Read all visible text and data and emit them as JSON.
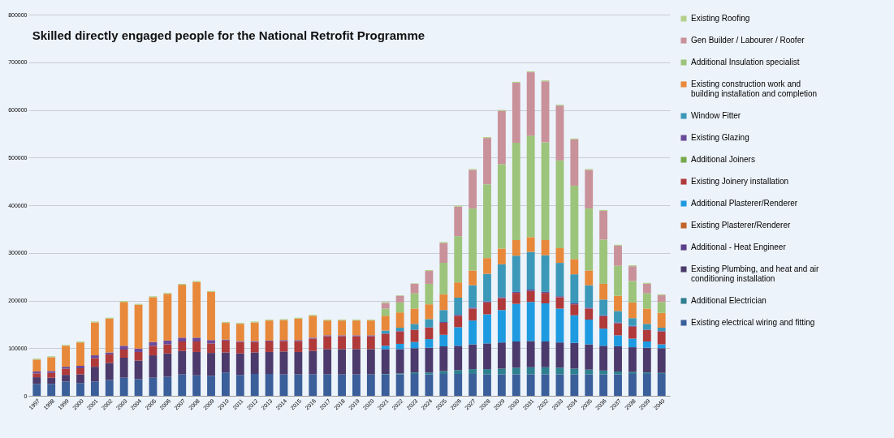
{
  "chart_data": {
    "type": "bar",
    "title": "Skilled directly engaged people for the National Retrofit Programme",
    "stacked": true,
    "grid": "y",
    "legend": "right",
    "categories": [
      "1997",
      "1998",
      "1999",
      "2000",
      "2001",
      "2002",
      "2003",
      "2004",
      "2005",
      "2006",
      "2007",
      "2008",
      "2009",
      "2010",
      "2011",
      "2012",
      "2013",
      "2014",
      "2015",
      "2016",
      "2017",
      "2018",
      "2019",
      "2020",
      "2021",
      "2022",
      "2023",
      "2024",
      "2025",
      "2026",
      "2027",
      "2028",
      "2029",
      "2030",
      "2031",
      "2032",
      "2033",
      "2034",
      "2035",
      "2036",
      "2037",
      "2038",
      "2039",
      "2040"
    ],
    "ylim": [
      0,
      800000
    ],
    "yticks": [
      0,
      100000,
      200000,
      300000,
      400000,
      500000,
      600000,
      700000,
      800000
    ],
    "series": [
      {
        "name": "Existing electrical wiring and fitting",
        "color": "#3a5f9a",
        "values": [
          25000,
          25000,
          30000,
          27000,
          30000,
          33000,
          38000,
          35000,
          38000,
          40000,
          45000,
          43000,
          42000,
          49000,
          44000,
          46000,
          46000,
          45000,
          45000,
          45000,
          45000,
          45000,
          45000,
          45000,
          45000,
          45000,
          46000,
          45000,
          46000,
          46000,
          46000,
          45000,
          45000,
          45000,
          45000,
          45000,
          45000,
          45000,
          45000,
          45000,
          45000,
          46000,
          46000,
          46000
        ]
      },
      {
        "name": "Additional Electrician",
        "color": "#2e7f8f",
        "values": [
          null,
          null,
          null,
          null,
          null,
          null,
          null,
          null,
          null,
          null,
          null,
          null,
          null,
          null,
          null,
          null,
          null,
          null,
          null,
          null,
          null,
          null,
          null,
          null,
          1000,
          2000,
          3000,
          4000,
          6000,
          8000,
          10000,
          11000,
          12000,
          14000,
          15000,
          15000,
          14000,
          12000,
          10000,
          8000,
          6000,
          4000,
          3000,
          2000
        ]
      },
      {
        "name": "Existing Plumbing, and heat and air conditioning installation",
        "color": "#4b3a6b",
        "values": [
          14000,
          13000,
          14000,
          18000,
          31000,
          36000,
          42000,
          39000,
          47000,
          49000,
          49000,
          49000,
          48000,
          42000,
          45000,
          45000,
          46000,
          48000,
          47000,
          49000,
          53000,
          53000,
          53000,
          53000,
          52000,
          51000,
          51000,
          52000,
          52000,
          51000,
          52000,
          54000,
          55000,
          55000,
          55000,
          54000,
          53000,
          54000,
          53000,
          52000,
          53000,
          52000,
          52000,
          52000
        ]
      },
      {
        "name": "Additional - Heat Engineer",
        "color": "#5a3f8c",
        "values": [
          null,
          null,
          null,
          null,
          null,
          null,
          null,
          null,
          null,
          null,
          null,
          null,
          null,
          null,
          null,
          null,
          null,
          null,
          null,
          null,
          null,
          null,
          null,
          null,
          null,
          null,
          null,
          null,
          null,
          null,
          null,
          null,
          null,
          null,
          null,
          null,
          null,
          null,
          null,
          null,
          null,
          null,
          null,
          null
        ]
      },
      {
        "name": "Existing Plasterer/Renderer",
        "color": "#c0622a",
        "values": [
          null,
          null,
          null,
          null,
          null,
          null,
          null,
          null,
          null,
          null,
          null,
          null,
          null,
          null,
          null,
          null,
          null,
          null,
          null,
          null,
          null,
          null,
          null,
          null,
          null,
          null,
          null,
          null,
          null,
          null,
          null,
          null,
          null,
          null,
          null,
          null,
          null,
          null,
          null,
          null,
          null,
          null,
          null,
          null
        ]
      },
      {
        "name": "Additional Plasterer/Renderer",
        "color": "#1e9be0",
        "values": [
          null,
          null,
          null,
          null,
          null,
          null,
          null,
          null,
          null,
          null,
          null,
          null,
          null,
          null,
          null,
          null,
          null,
          null,
          null,
          null,
          null,
          null,
          null,
          null,
          7000,
          11000,
          13000,
          18000,
          24000,
          39000,
          50000,
          61000,
          68000,
          79000,
          82000,
          80000,
          71000,
          58000,
          52000,
          36000,
          23000,
          18000,
          13000,
          8000
        ]
      },
      {
        "name": "Existing Joinery installation",
        "color": "#b03a3a",
        "values": [
          8000,
          10000,
          13000,
          13000,
          18000,
          18000,
          17000,
          18000,
          20000,
          19000,
          20000,
          22000,
          20000,
          25000,
          24000,
          22000,
          22000,
          22000,
          23000,
          26000,
          27000,
          27000,
          27000,
          27000,
          25000,
          26000,
          25000,
          24000,
          25000,
          24000,
          25000,
          25000,
          25000,
          23000,
          23000,
          22000,
          24000,
          23000,
          23000,
          26000,
          25000,
          25000,
          24000,
          27000
        ]
      },
      {
        "name": "Additional Joiners",
        "color": "#77a84a",
        "values": [
          null,
          null,
          null,
          null,
          null,
          null,
          null,
          null,
          null,
          null,
          null,
          null,
          null,
          null,
          null,
          null,
          null,
          null,
          null,
          null,
          null,
          null,
          null,
          null,
          null,
          null,
          null,
          null,
          null,
          null,
          null,
          null,
          null,
          null,
          null,
          null,
          null,
          null,
          null,
          null,
          null,
          null,
          null,
          null
        ]
      },
      {
        "name": "Existing Glazing",
        "color": "#6a4a9a",
        "values": [
          4000,
          4000,
          4000,
          5000,
          6000,
          4000,
          8000,
          7000,
          8000,
          8000,
          8000,
          8000,
          7000,
          2000,
          2000,
          2000,
          2000,
          2000,
          2000,
          2000,
          2000,
          2000,
          2000,
          2000,
          1000,
          1000,
          1000,
          1000,
          2000,
          2000,
          2000,
          2000,
          2000,
          2000,
          3000,
          2000,
          2000,
          2000,
          2000,
          2000,
          2000,
          2000,
          1000,
          1000
        ]
      },
      {
        "name": "Window Fitter",
        "color": "#3b98b8",
        "values": [
          null,
          null,
          null,
          null,
          null,
          null,
          null,
          null,
          null,
          null,
          null,
          null,
          null,
          null,
          null,
          null,
          null,
          null,
          null,
          null,
          null,
          null,
          null,
          null,
          6000,
          7000,
          12000,
          17000,
          25000,
          36000,
          47000,
          58000,
          69000,
          76000,
          79000,
          77000,
          70000,
          61000,
          47000,
          33000,
          24000,
          16000,
          12000,
          7000
        ]
      },
      {
        "name": "Existing construction work and building installation and completion",
        "color": "#e8883a",
        "values": [
          25000,
          29000,
          44000,
          49000,
          69000,
          71000,
          92000,
          92000,
          94000,
          98000,
          111000,
          117000,
          101000,
          35000,
          36000,
          39000,
          42000,
          42000,
          45000,
          46000,
          31000,
          31000,
          31000,
          31000,
          31000,
          32000,
          32000,
          31000,
          33000,
          32000,
          31000,
          33000,
          33000,
          33000,
          31000,
          32000,
          31000,
          32000,
          31000,
          33000,
          32000,
          33000,
          32000,
          31000
        ]
      },
      {
        "name": "Additional Insulation specialist",
        "color": "#9cc47a",
        "values": [
          null,
          null,
          null,
          null,
          null,
          null,
          null,
          null,
          null,
          null,
          null,
          null,
          null,
          null,
          null,
          null,
          null,
          null,
          null,
          null,
          null,
          null,
          null,
          null,
          15000,
          21000,
          32000,
          43000,
          66000,
          97000,
          130000,
          155000,
          177000,
          204000,
          213000,
          205000,
          184000,
          154000,
          130000,
          93000,
          63000,
          45000,
          32000,
          23000
        ]
      },
      {
        "name": "Gen Builder / Labourer / Roofer",
        "color": "#c9919a",
        "values": [
          null,
          null,
          null,
          null,
          null,
          null,
          null,
          null,
          null,
          null,
          null,
          null,
          null,
          null,
          null,
          null,
          null,
          null,
          null,
          null,
          null,
          null,
          null,
          null,
          12000,
          14000,
          20000,
          27000,
          42000,
          62000,
          81000,
          97000,
          112000,
          126000,
          133000,
          128000,
          115000,
          97000,
          81000,
          60000,
          42000,
          31000,
          20000,
          14000
        ]
      },
      {
        "name": "Existing Roofing",
        "color": "#b4d08c",
        "values": [
          2000,
          2000,
          2000,
          2000,
          2000,
          2000,
          2000,
          2000,
          2000,
          2000,
          2000,
          2000,
          2000,
          2000,
          2000,
          2000,
          2000,
          2000,
          2000,
          2000,
          2000,
          2000,
          2000,
          2000,
          2000,
          1000,
          1000,
          2000,
          2000,
          2000,
          2000,
          2000,
          2000,
          2000,
          2000,
          2000,
          2000,
          2000,
          2000,
          2000,
          2000,
          2000,
          2000,
          2000
        ]
      }
    ]
  }
}
